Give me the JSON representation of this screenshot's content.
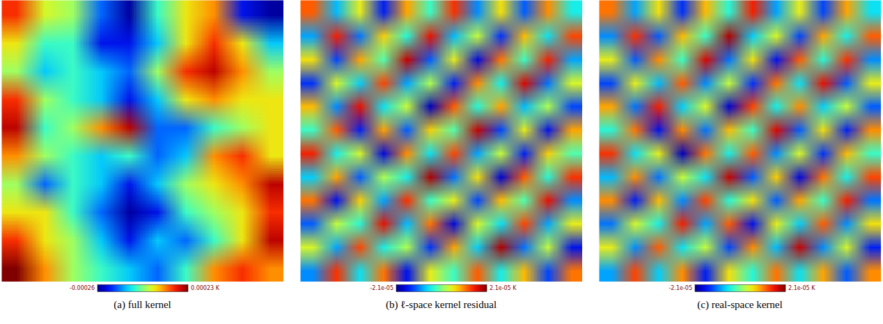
{
  "chart_data": [
    {
      "type": "heatmap",
      "title": "(a) full kernel",
      "cells": [
        [
          0.00015,
          3e-05,
          0,
          -0.00015,
          -0.00025,
          -5e-05,
          5e-05,
          0.0001,
          -0.0002,
          -0.00025
        ],
        [
          5e-05,
          -5e-05,
          -5e-05,
          -0.0002,
          -0.0002,
          -0.0001,
          5e-05,
          0.00015,
          5e-05,
          -0.0001
        ],
        [
          0,
          -0.0001,
          -5e-05,
          -0.0001,
          -0.00015,
          0,
          0.00015,
          0.0002,
          0.0001,
          0
        ],
        [
          0.00015,
          0,
          -5e-05,
          -0.0001,
          -0.0002,
          -0.0001,
          5e-05,
          0.0001,
          5e-05,
          5e-05
        ],
        [
          0.0002,
          -5e-05,
          0,
          0.0001,
          0.0002,
          -0.00015,
          -0.00015,
          -5e-05,
          0,
          5e-05
        ],
        [
          0.0001,
          0,
          -5e-05,
          -0.0001,
          -5e-05,
          -0.00015,
          -0.0001,
          0.0001,
          0.00015,
          5e-05
        ],
        [
          0,
          -0.00015,
          -5e-05,
          -0.0001,
          -0.0002,
          -0.0001,
          0,
          5e-05,
          0.0001,
          0.0002
        ],
        [
          5e-05,
          5e-05,
          -5e-05,
          -0.00015,
          -0.00025,
          -0.0002,
          -5e-05,
          0,
          5e-05,
          0.00015
        ],
        [
          0.00015,
          5e-05,
          0,
          -0.0001,
          -0.0002,
          -0.0001,
          -0.00015,
          -5e-05,
          5e-05,
          0.0002
        ],
        [
          0.00025,
          0.0001,
          0,
          -5e-05,
          -0.0001,
          -0.00015,
          -5e-05,
          0.0001,
          0.00015,
          0.0001
        ]
      ],
      "colorbar_range": [
        -0.00026,
        0.00023
      ],
      "colorbar_ticks": [
        -0.00026,
        {
          "value": 0.00023,
          "label": "0.00023 K"
        }
      ]
    },
    {
      "type": "heatmap",
      "title": "(b) ℓ-space kernel residual",
      "cells": [
        [
          1.2e-05,
          -8e-06,
          5e-06,
          -1.5e-05,
          9e-06,
          -3e-06,
          1.4e-05,
          -1e-05,
          6e-06,
          -1.2e-05,
          1e-05,
          -5e-06
        ],
        [
          -9e-06,
          1.5e-05,
          -1.1e-05,
          7e-06,
          -4e-06,
          1.6e-05,
          -8e-06,
          3e-06,
          -1.4e-05,
          8e-06,
          -6e-06,
          1.3e-05
        ],
        [
          6e-06,
          -1.3e-05,
          9e-06,
          -2e-06,
          1.8e-05,
          -1.2e-05,
          5e-06,
          -1.7e-05,
          1.1e-05,
          -3e-06,
          1.5e-05,
          -9e-06
        ],
        [
          -1.4e-05,
          4e-06,
          -7e-06,
          1.3e-05,
          -9e-06,
          2e-06,
          -1.5e-05,
          1e-05,
          -5e-06,
          1.7e-05,
          -1.1e-05,
          4e-06
        ],
        [
          8e-06,
          -1e-05,
          1.6e-05,
          -6e-06,
          3e-06,
          -1.9e-05,
          1.2e-05,
          -4e-06,
          9e-06,
          -8e-06,
          2e-06,
          -1.3e-05
        ],
        [
          -3e-06,
          1.2e-05,
          -1.5e-05,
          9e-06,
          -1.2e-05,
          7e-06,
          -2e-06,
          1.8e-05,
          -1.3e-05,
          5e-06,
          -1.6e-05,
          9e-06
        ],
        [
          1.5e-05,
          -5e-06,
          4e-06,
          -1.7e-05,
          1e-05,
          -6e-06,
          1.3e-05,
          -9e-06,
          3e-06,
          -1.5e-05,
          7e-06,
          -2e-06
        ],
        [
          -7e-06,
          9e-06,
          -1.2e-05,
          2e-06,
          -5e-06,
          1.9e-05,
          -1.1e-05,
          6e-06,
          -1.8e-05,
          1.2e-05,
          -4e-06,
          1.4e-05
        ],
        [
          1.1e-05,
          -1.6e-05,
          7e-06,
          -9e-06,
          1.4e-05,
          -3e-06,
          5e-06,
          -1.3e-05,
          8e-06,
          -2e-06,
          1.6e-05,
          -1e-05
        ],
        [
          -1.2e-05,
          3e-06,
          -4e-06,
          1.6e-05,
          -8e-06,
          1.1e-05,
          -1.7e-05,
          4e-06,
          -6e-06,
          1.3e-05,
          -9e-06,
          5e-06
        ],
        [
          4e-06,
          -9e-06,
          1.3e-05,
          -5e-06,
          2e-06,
          -1.4e-05,
          9e-06,
          -7e-06,
          1.9e-05,
          -1.1e-05,
          3e-06,
          -1.6e-05
        ],
        [
          -1e-05,
          1.4e-05,
          -6e-06,
          1.1e-05,
          -1.6e-05,
          5e-06,
          -3e-06,
          1.2e-05,
          -5e-06,
          8e-06,
          -1.3e-05,
          1.1e-05
        ]
      ],
      "colorbar_range": [
        -2.1e-05,
        2.1e-05
      ],
      "colorbar_ticks": [
        {
          "value": -2.1e-05,
          "label": "-2.1e-05"
        },
        {
          "value": 2.1e-05,
          "label": "2.1e-05 K"
        }
      ]
    },
    {
      "type": "heatmap",
      "title": "(c) real-space kernel",
      "cells": [
        [
          1.1e-05,
          -9e-06,
          6e-06,
          -1.4e-05,
          8e-06,
          -4e-06,
          1.5e-05,
          -9e-06,
          5e-06,
          -1.3e-05,
          9e-06,
          -6e-06
        ],
        [
          -1e-05,
          1.4e-05,
          -1.2e-05,
          8e-06,
          -3e-06,
          1.9e-05,
          -7e-06,
          4e-06,
          -1.3e-05,
          9e-06,
          -5e-06,
          1.2e-05
        ],
        [
          5e-06,
          -1.2e-05,
          1e-05,
          -3e-06,
          1.7e-05,
          -1.1e-05,
          6e-06,
          -1.6e-05,
          1.2e-05,
          -4e-06,
          1.4e-05,
          -1e-05
        ],
        [
          -1.3e-05,
          5e-06,
          -8e-06,
          1.2e-05,
          -1e-05,
          3e-06,
          -1.4e-05,
          1.1e-05,
          -6e-06,
          1.6e-05,
          -1.2e-05,
          5e-06
        ],
        [
          9e-06,
          -1.1e-05,
          1.5e-05,
          -7e-06,
          4e-06,
          -1.8e-05,
          1.3e-05,
          -5e-06,
          1e-05,
          -7e-06,
          3e-06,
          -1.2e-05
        ],
        [
          -4e-06,
          1.1e-05,
          -1.6e-05,
          1e-05,
          -1.1e-05,
          8e-06,
          -3e-06,
          1.7e-05,
          -1.2e-05,
          6e-06,
          -1.5e-05,
          1e-05
        ],
        [
          1.4e-05,
          -6e-06,
          5e-06,
          -1.9e-05,
          1.1e-05,
          -5e-06,
          1.2e-05,
          -1e-05,
          4e-06,
          -1.4e-05,
          8e-06,
          -3e-06
        ],
        [
          -8e-06,
          1e-05,
          -1.1e-05,
          3e-06,
          -6e-06,
          1.8e-05,
          -1.2e-05,
          7e-06,
          -1.7e-05,
          1.1e-05,
          -5e-06,
          1.3e-05
        ],
        [
          1e-05,
          -1.5e-05,
          8e-06,
          -1e-05,
          1.3e-05,
          -4e-06,
          6e-06,
          -1.2e-05,
          9e-06,
          -3e-06,
          1.5e-05,
          -1.1e-05
        ],
        [
          -1.1e-05,
          4e-06,
          -5e-06,
          1.5e-05,
          -9e-06,
          1.2e-05,
          -1.6e-05,
          5e-06,
          -7e-06,
          1.2e-05,
          -1e-05,
          6e-06
        ],
        [
          5e-06,
          -1e-05,
          1.2e-05,
          -6e-06,
          3e-06,
          -1.3e-05,
          1e-05,
          -8e-06,
          1.8e-05,
          -1e-05,
          4e-06,
          -1.5e-05
        ],
        [
          -9e-06,
          1.3e-05,
          -7e-06,
          1e-05,
          -1.5e-05,
          6e-06,
          -4e-06,
          1.1e-05,
          -6e-06,
          9e-06,
          -1.2e-05,
          1e-05
        ]
      ],
      "colorbar_range": [
        -2.1e-05,
        2.1e-05
      ],
      "colorbar_ticks": [
        {
          "value": -2.1e-05,
          "label": "-2.1e-05"
        },
        {
          "value": 2.1e-05,
          "label": "2.1e-05 K"
        }
      ]
    }
  ]
}
